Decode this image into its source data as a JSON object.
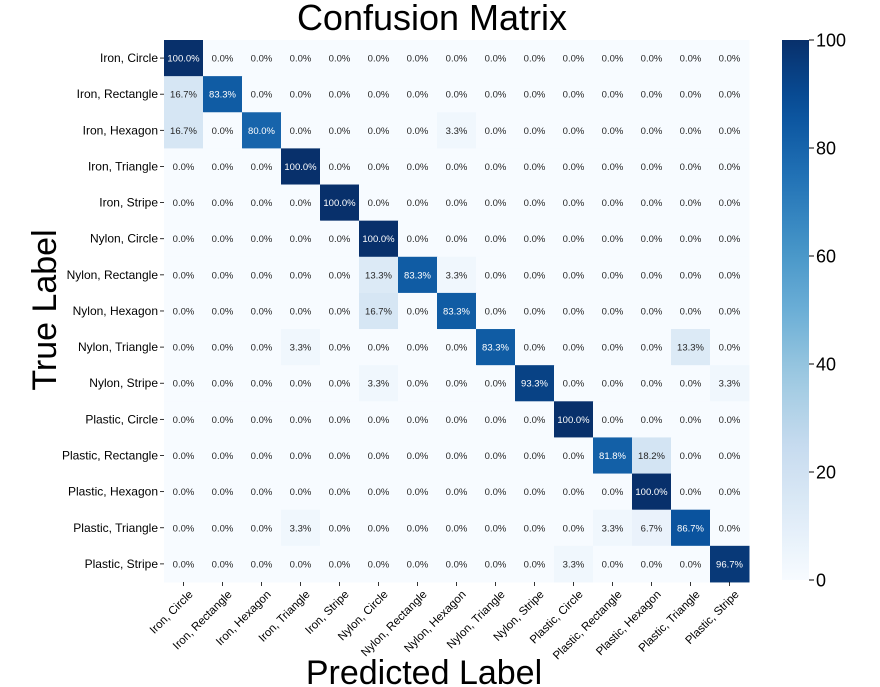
{
  "chart_data": {
    "type": "heatmap",
    "title": "Confusion Matrix",
    "xlabel": "Predicted Label",
    "ylabel": "True Label",
    "row_labels": [
      "Iron, Circle",
      "Iron, Rectangle",
      "Iron, Hexagon",
      "Iron, Triangle",
      "Iron, Stripe",
      "Nylon, Circle",
      "Nylon, Rectangle",
      "Nylon, Hexagon",
      "Nylon, Triangle",
      "Nylon, Stripe",
      "Plastic, Circle",
      "Plastic, Rectangle",
      "Plastic, Hexagon",
      "Plastic, Triangle",
      "Plastic, Stripe"
    ],
    "col_labels": [
      "Iron, Circle",
      "Iron, Rectangle",
      "Iron, Hexagon",
      "Iron, Triangle",
      "Iron, Stripe",
      "Nylon, Circle",
      "Nylon, Rectangle",
      "Nylon, Hexagon",
      "Nylon, Triangle",
      "Nylon, Stripe",
      "Plastic, Circle",
      "Plastic, Rectangle",
      "Plastic, Hexagon",
      "Plastic, Triangle",
      "Plastic, Stripe"
    ],
    "values": [
      [
        100.0,
        0.0,
        0.0,
        0.0,
        0.0,
        0.0,
        0.0,
        0.0,
        0.0,
        0.0,
        0.0,
        0.0,
        0.0,
        0.0,
        0.0
      ],
      [
        16.7,
        83.3,
        0.0,
        0.0,
        0.0,
        0.0,
        0.0,
        0.0,
        0.0,
        0.0,
        0.0,
        0.0,
        0.0,
        0.0,
        0.0
      ],
      [
        16.7,
        0.0,
        80.0,
        0.0,
        0.0,
        0.0,
        0.0,
        3.3,
        0.0,
        0.0,
        0.0,
        0.0,
        0.0,
        0.0,
        0.0
      ],
      [
        0.0,
        0.0,
        0.0,
        100.0,
        0.0,
        0.0,
        0.0,
        0.0,
        0.0,
        0.0,
        0.0,
        0.0,
        0.0,
        0.0,
        0.0
      ],
      [
        0.0,
        0.0,
        0.0,
        0.0,
        100.0,
        0.0,
        0.0,
        0.0,
        0.0,
        0.0,
        0.0,
        0.0,
        0.0,
        0.0,
        0.0
      ],
      [
        0.0,
        0.0,
        0.0,
        0.0,
        0.0,
        100.0,
        0.0,
        0.0,
        0.0,
        0.0,
        0.0,
        0.0,
        0.0,
        0.0,
        0.0
      ],
      [
        0.0,
        0.0,
        0.0,
        0.0,
        0.0,
        13.3,
        83.3,
        3.3,
        0.0,
        0.0,
        0.0,
        0.0,
        0.0,
        0.0,
        0.0
      ],
      [
        0.0,
        0.0,
        0.0,
        0.0,
        0.0,
        16.7,
        0.0,
        83.3,
        0.0,
        0.0,
        0.0,
        0.0,
        0.0,
        0.0,
        0.0
      ],
      [
        0.0,
        0.0,
        0.0,
        3.3,
        0.0,
        0.0,
        0.0,
        0.0,
        83.3,
        0.0,
        0.0,
        0.0,
        0.0,
        13.3,
        0.0
      ],
      [
        0.0,
        0.0,
        0.0,
        0.0,
        0.0,
        3.3,
        0.0,
        0.0,
        0.0,
        93.3,
        0.0,
        0.0,
        0.0,
        0.0,
        3.3
      ],
      [
        0.0,
        0.0,
        0.0,
        0.0,
        0.0,
        0.0,
        0.0,
        0.0,
        0.0,
        0.0,
        100.0,
        0.0,
        0.0,
        0.0,
        0.0
      ],
      [
        0.0,
        0.0,
        0.0,
        0.0,
        0.0,
        0.0,
        0.0,
        0.0,
        0.0,
        0.0,
        0.0,
        81.8,
        18.2,
        0.0,
        0.0
      ],
      [
        0.0,
        0.0,
        0.0,
        0.0,
        0.0,
        0.0,
        0.0,
        0.0,
        0.0,
        0.0,
        0.0,
        0.0,
        100.0,
        0.0,
        0.0
      ],
      [
        0.0,
        0.0,
        0.0,
        3.3,
        0.0,
        0.0,
        0.0,
        0.0,
        0.0,
        0.0,
        0.0,
        3.3,
        6.7,
        86.7,
        0.0
      ],
      [
        0.0,
        0.0,
        0.0,
        0.0,
        0.0,
        0.0,
        0.0,
        0.0,
        0.0,
        0.0,
        3.3,
        0.0,
        0.0,
        0.0,
        96.7
      ]
    ],
    "value_suffix": "%",
    "colorbar": {
      "min": 0,
      "max": 100,
      "ticks": [
        "0",
        "20",
        "40",
        "60",
        "80",
        "100"
      ],
      "colormap": "Blues"
    },
    "colors": {
      "low": "#f7fbff",
      "high": "#08306b",
      "text_dark": "#262626",
      "text_light": "#ffffff"
    }
  }
}
